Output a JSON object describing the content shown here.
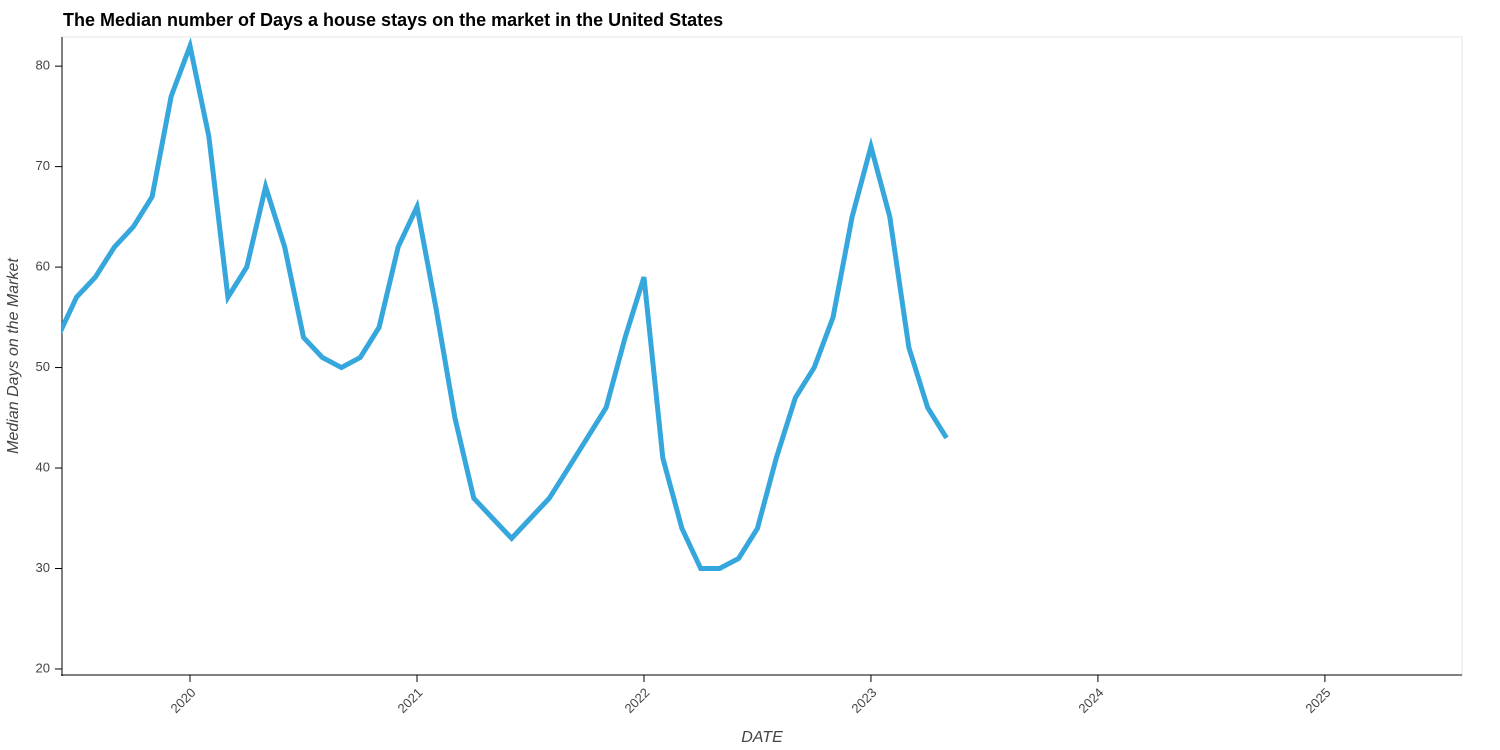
{
  "chart_data": {
    "type": "line",
    "title": "The Median number of Days a house stays on the market in the United States",
    "x_label": "DATE",
    "y_label": "Median Days on the Market",
    "x": [
      2019.417,
      2019.5,
      2019.583,
      2019.667,
      2019.75,
      2019.833,
      2019.917,
      2020.0,
      2020.083,
      2020.167,
      2020.25,
      2020.333,
      2020.417,
      2020.5,
      2020.583,
      2020.667,
      2020.75,
      2020.833,
      2020.917,
      2021.0,
      2021.083,
      2021.167,
      2021.25,
      2021.333,
      2021.417,
      2021.5,
      2021.583,
      2021.667,
      2021.75,
      2021.833,
      2021.917,
      2022.0,
      2022.083,
      2022.167,
      2022.25,
      2022.333,
      2022.417,
      2022.5,
      2022.583,
      2022.667,
      2022.75,
      2022.833,
      2022.917,
      2023.0,
      2023.083,
      2023.167,
      2023.25,
      2023.333
    ],
    "series": [
      {
        "color": "#36a7dc",
        "values": [
          53,
          57,
          59,
          62,
          64,
          67,
          77,
          82,
          73,
          57,
          60,
          68,
          62,
          53,
          51,
          50,
          51,
          54,
          62,
          66,
          56,
          45,
          37,
          35,
          33,
          35,
          37,
          40,
          43,
          46,
          53,
          59,
          41,
          34,
          30,
          30,
          31,
          34,
          41,
          47,
          50,
          55,
          65,
          72,
          65,
          52,
          46,
          43
        ]
      }
    ],
    "xlim": [
      2019.436,
      2025.604
    ],
    "xticks": [
      2020,
      2021,
      2022,
      2023,
      2024,
      2025
    ],
    "ylim": [
      19.4,
      82.9
    ],
    "yticks": [
      20,
      30,
      40,
      50,
      60,
      70,
      80
    ]
  }
}
